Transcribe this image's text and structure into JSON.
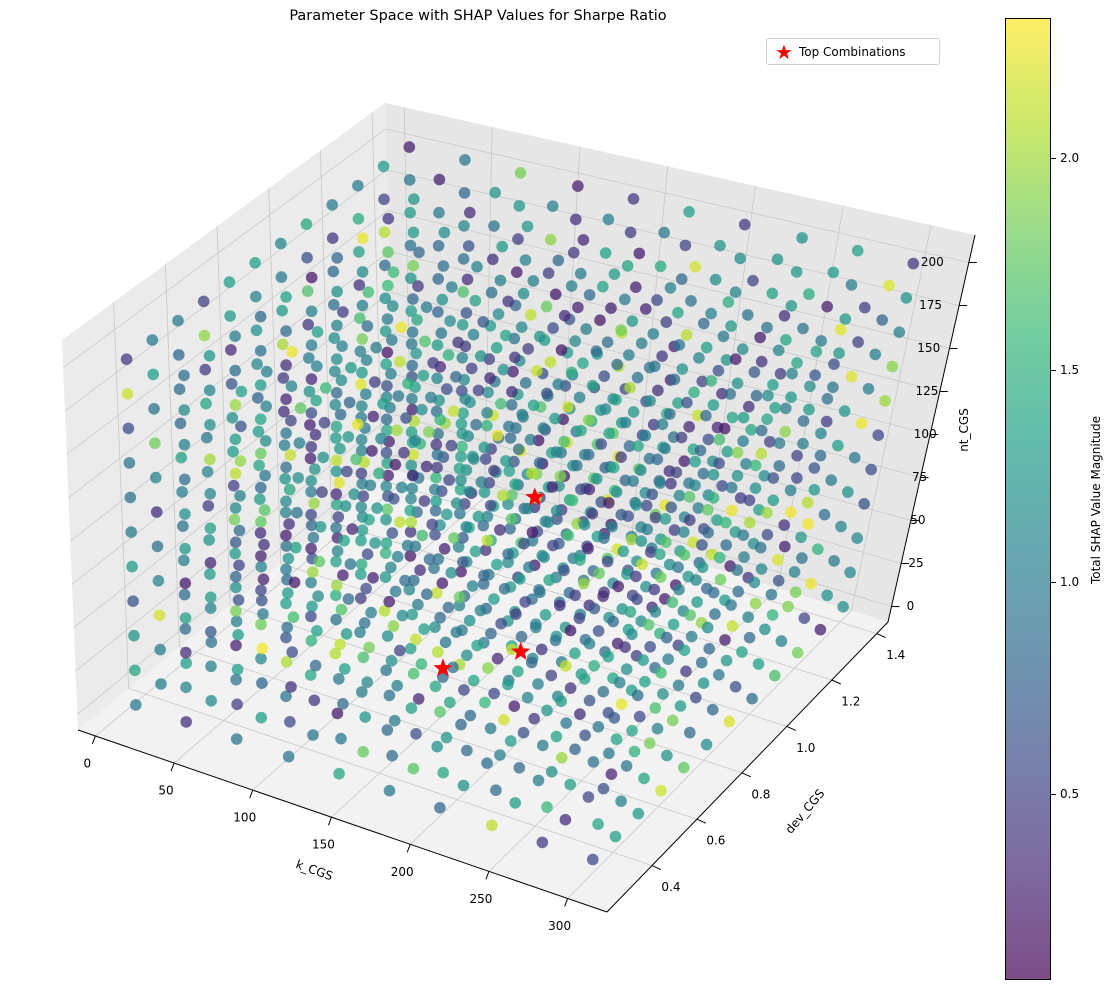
{
  "chart_data": {
    "type": "scatter",
    "projection": "3d",
    "title": "Parameter Space with SHAP Values for Sharpe Ratio",
    "xlabel": "k_CGS",
    "ylabel": "dev_CGS",
    "zlabel": "nt_CGS",
    "xlim": [
      -11,
      325
    ],
    "ylim": [
      0.2,
      1.45
    ],
    "zlim": [
      -9,
      216
    ],
    "xticks": [
      "0",
      "50",
      "100",
      "150",
      "200",
      "250",
      "300"
    ],
    "yticks": [
      "0.4",
      "0.6",
      "0.8",
      "1.0",
      "1.2",
      "1.4"
    ],
    "zticks": [
      "0",
      "25",
      "50",
      "75",
      "100",
      "125",
      "150",
      "175",
      "200"
    ],
    "grid": true,
    "grid_levels": {
      "k_CGS": [
        10,
        42,
        74,
        107,
        139,
        171,
        203,
        236,
        268,
        300
      ],
      "dev_CGS": [
        0.3,
        0.4,
        0.5,
        0.6,
        0.7,
        0.8,
        0.9,
        1.0,
        1.1,
        1.2,
        1.3,
        1.4
      ],
      "nt_CGS": [
        0,
        20,
        40,
        60,
        80,
        100,
        120,
        140,
        160,
        180,
        200
      ]
    },
    "colormap": "viridis",
    "color_range": [
      0.06,
      2.33
    ],
    "colorbar": {
      "label": "Total SHAP Value Magnitude",
      "ticks": [
        "0.5",
        "1.0",
        "1.5",
        "2.0"
      ]
    },
    "top_combinations": {
      "name": "Top Combinations",
      "color": "#ff0000",
      "marker": "star",
      "points": [
        {
          "k_CGS": 150,
          "dev_CGS": 0.65,
          "nt_CGS": 20
        },
        {
          "k_CGS": 170,
          "dev_CGS": 0.85,
          "nt_CGS": 10
        },
        {
          "k_CGS": 170,
          "dev_CGS": 0.85,
          "nt_CGS": 100
        }
      ]
    },
    "legend": {
      "position": "top-right",
      "entries": [
        "Top Combinations"
      ]
    }
  }
}
